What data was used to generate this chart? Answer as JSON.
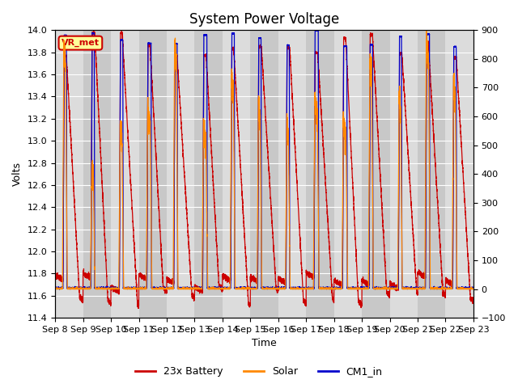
{
  "title": "System Power Voltage",
  "xlabel": "Time",
  "ylabel_left": "Volts",
  "xlim_start": 0,
  "xlim_end": 15,
  "ylim_left": [
    11.4,
    14.0
  ],
  "ylim_right": [
    -100,
    900
  ],
  "x_tick_labels": [
    "Sep 8",
    "Sep 9",
    "Sep 10",
    "Sep 11",
    "Sep 12",
    "Sep 13",
    "Sep 14",
    "Sep 15",
    "Sep 16",
    "Sep 17",
    "Sep 18",
    "Sep 19",
    "Sep 20",
    "Sep 21",
    "Sep 22",
    "Sep 23"
  ],
  "legend_labels": [
    "23x Battery",
    "Solar",
    "CM1_in"
  ],
  "legend_colors": [
    "#cc0000",
    "#ff8800",
    "#0000cc"
  ],
  "background_color": "#ffffff",
  "plot_bg_color": "#dcdcdc",
  "plot_bg_alt": "#c8c8c8",
  "annotation_text": "VR_met",
  "annotation_color": "#cc0000",
  "annotation_bg": "#ffff99",
  "annotation_border": "#cc0000",
  "grid_color": "#ffffff",
  "title_fontsize": 12
}
